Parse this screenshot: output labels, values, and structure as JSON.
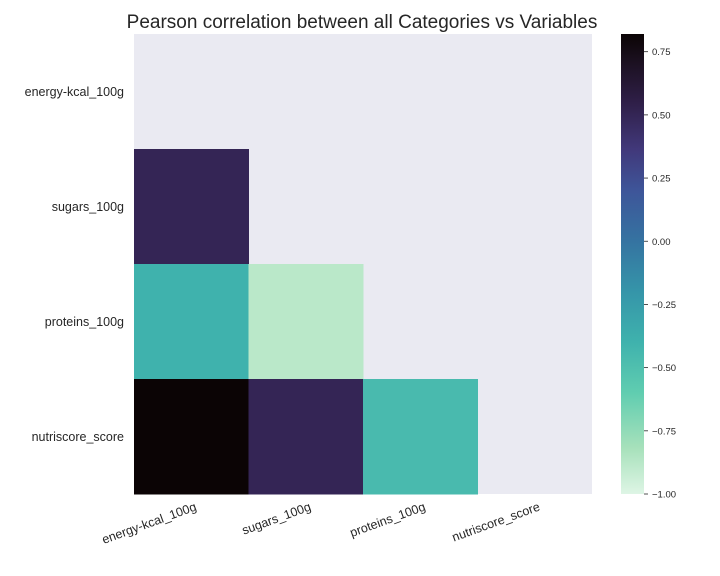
{
  "chart_data": {
    "type": "heatmap",
    "title": "Pearson correlation between all Categories vs Variables",
    "rows": [
      "energy-kcal_100g",
      "sugars_100g",
      "proteins_100g",
      "nutriscore_score"
    ],
    "columns": [
      "energy-kcal_100g",
      "sugars_100g",
      "proteins_100g",
      "nutriscore_score"
    ],
    "mask": "upper-triangle-including-diagonal",
    "values": [
      [
        null,
        null,
        null,
        null
      ],
      [
        0.5,
        null,
        null,
        null
      ],
      [
        -0.4,
        -0.88,
        null,
        null
      ],
      [
        0.82,
        0.5,
        -0.46,
        null
      ]
    ],
    "colormap": "mako_r",
    "vmin": -1.0,
    "vmax": 0.82,
    "colorbar_ticks": [
      -1.0,
      -0.75,
      -0.5,
      -0.25,
      0.0,
      0.25,
      0.5,
      0.75
    ],
    "colorbar_tick_labels": [
      "−1.00",
      "−0.75",
      "−0.50",
      "−0.25",
      "0.00",
      "0.25",
      "0.50",
      "0.75"
    ],
    "background_color": "#eaeaf2",
    "xtick_rotation_deg": -20
  }
}
